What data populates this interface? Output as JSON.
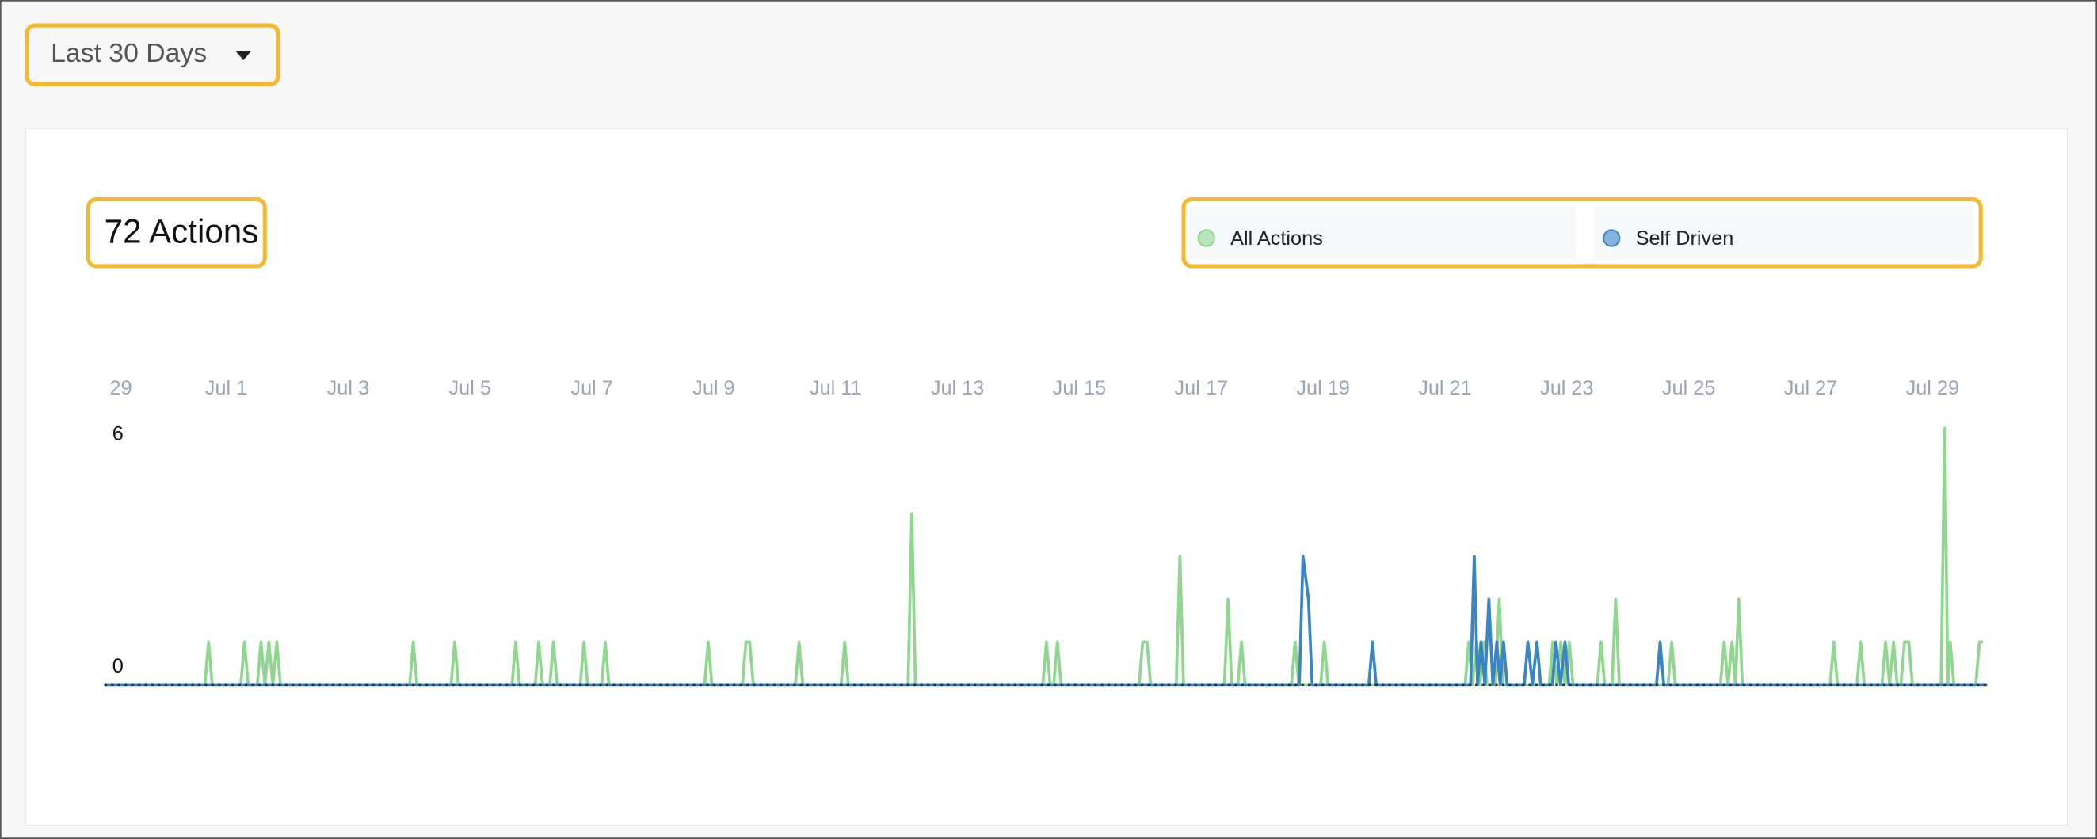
{
  "dropdown": {
    "label": "Last 30 Days"
  },
  "summary": "72 Actions",
  "chart_data": {
    "type": "line",
    "xlim": [
      0,
      30.9
    ],
    "xticks": [
      {
        "value": 0,
        "label": "29"
      },
      {
        "value": 2,
        "label": "Jul 1"
      },
      {
        "value": 4,
        "label": "Jul 3"
      },
      {
        "value": 6,
        "label": "Jul 5"
      },
      {
        "value": 8,
        "label": "Jul 7"
      },
      {
        "value": 10,
        "label": "Jul 9"
      },
      {
        "value": 12,
        "label": "Jul 11"
      },
      {
        "value": 14,
        "label": "Jul 13"
      },
      {
        "value": 16,
        "label": "Jul 15"
      },
      {
        "value": 18,
        "label": "Jul 17"
      },
      {
        "value": 20,
        "label": "Jul 19"
      },
      {
        "value": 22,
        "label": "Jul 21"
      },
      {
        "value": 24,
        "label": "Jul 23"
      },
      {
        "value": 26,
        "label": "Jul 25"
      },
      {
        "value": 28,
        "label": "Jul 27"
      },
      {
        "value": 30,
        "label": "Jul 29"
      }
    ],
    "ylim": [
      0,
      6
    ],
    "yticks": [
      0,
      6
    ],
    "series": [
      {
        "name": "All Actions",
        "color": "#8fd68f",
        "x": [
          0,
          1.65,
          1.71,
          1.77,
          2.24,
          2.3,
          2.36,
          2.51,
          2.57,
          2.635,
          2.7,
          2.765,
          2.83,
          2.89,
          5.01,
          5.07,
          5.13,
          5.69,
          5.75,
          5.81,
          6.69,
          6.75,
          6.81,
          7.07,
          7.13,
          7.19,
          7.31,
          7.37,
          7.43,
          7.81,
          7.87,
          7.93,
          8.16,
          8.22,
          8.28,
          9.85,
          9.91,
          9.97,
          10.47,
          10.53,
          10.59,
          10.65,
          11.34,
          11.4,
          11.46,
          12.09,
          12.15,
          12.21,
          13.19,
          13.25,
          13.31,
          15.4,
          15.46,
          15.52,
          15.58,
          15.64,
          15.7,
          16.98,
          17.04,
          17.11,
          17.17,
          17.59,
          17.65,
          17.71,
          18.38,
          18.44,
          18.5,
          18.6,
          18.66,
          18.72,
          19.48,
          19.54,
          19.6,
          19.96,
          20.02,
          20.08,
          22.33,
          22.39,
          22.45,
          22.52,
          22.575,
          22.63,
          22.69,
          22.83,
          22.89,
          22.95,
          23.71,
          23.77,
          23.835,
          23.9,
          23.97,
          24.04,
          24.1,
          24.5,
          24.56,
          24.62,
          24.74,
          24.8,
          24.86,
          25.66,
          25.72,
          25.78,
          26.52,
          26.58,
          26.645,
          26.71,
          26.765,
          26.82,
          26.88,
          28.32,
          28.38,
          28.44,
          28.76,
          28.82,
          28.88,
          29.17,
          29.23,
          29.295,
          29.36,
          29.42,
          29.48,
          29.54,
          29.61,
          29.67,
          30.14,
          30.2,
          30.25,
          30.29,
          30.35,
          30.71,
          30.77,
          30.83
        ],
        "values": [
          0,
          0,
          1,
          0,
          0,
          1,
          0,
          0,
          1,
          0,
          1,
          0,
          1,
          0,
          0,
          1,
          0,
          0,
          1,
          0,
          0,
          1,
          0,
          0,
          1,
          0,
          0,
          1,
          0,
          0,
          1,
          0,
          0,
          1,
          0,
          0,
          1,
          0,
          0,
          1,
          1,
          0,
          0,
          1,
          0,
          0,
          1,
          0,
          0,
          4,
          0,
          0,
          1,
          0,
          0,
          1,
          0,
          0,
          1,
          1,
          0,
          0,
          3,
          0,
          0,
          2,
          0,
          0,
          1,
          0,
          0,
          1,
          0,
          0,
          1,
          0,
          0,
          1,
          0,
          1,
          0,
          1,
          0,
          0,
          2,
          0,
          0,
          1,
          0,
          1,
          0,
          1,
          0,
          0,
          1,
          0,
          0,
          2,
          0,
          0,
          1,
          0,
          0,
          1,
          0,
          1,
          0,
          2,
          0,
          0,
          1,
          0,
          0,
          1,
          0,
          0,
          1,
          0,
          1,
          0,
          0,
          1,
          1,
          0,
          0,
          6,
          0,
          1,
          0,
          0,
          1,
          1
        ]
      },
      {
        "name": "Self Driven",
        "color": "#3a85c4",
        "x": [
          0,
          19.61,
          19.67,
          19.76,
          19.82,
          20.75,
          20.81,
          20.87,
          22.42,
          22.48,
          22.535,
          22.59,
          22.655,
          22.72,
          22.785,
          22.85,
          22.905,
          22.96,
          23.02,
          23.3,
          23.36,
          23.435,
          23.51,
          23.57,
          23.76,
          23.82,
          23.895,
          23.97,
          24.03,
          25.47,
          25.53,
          25.59,
          30.9
        ],
        "values": [
          0,
          0,
          3,
          2,
          0,
          0,
          1,
          0,
          0,
          3,
          0,
          1,
          0,
          2,
          0,
          1,
          0,
          1,
          0,
          0,
          1,
          0,
          1,
          0,
          0,
          1,
          0,
          1,
          0,
          0,
          1,
          0,
          0
        ]
      }
    ]
  }
}
